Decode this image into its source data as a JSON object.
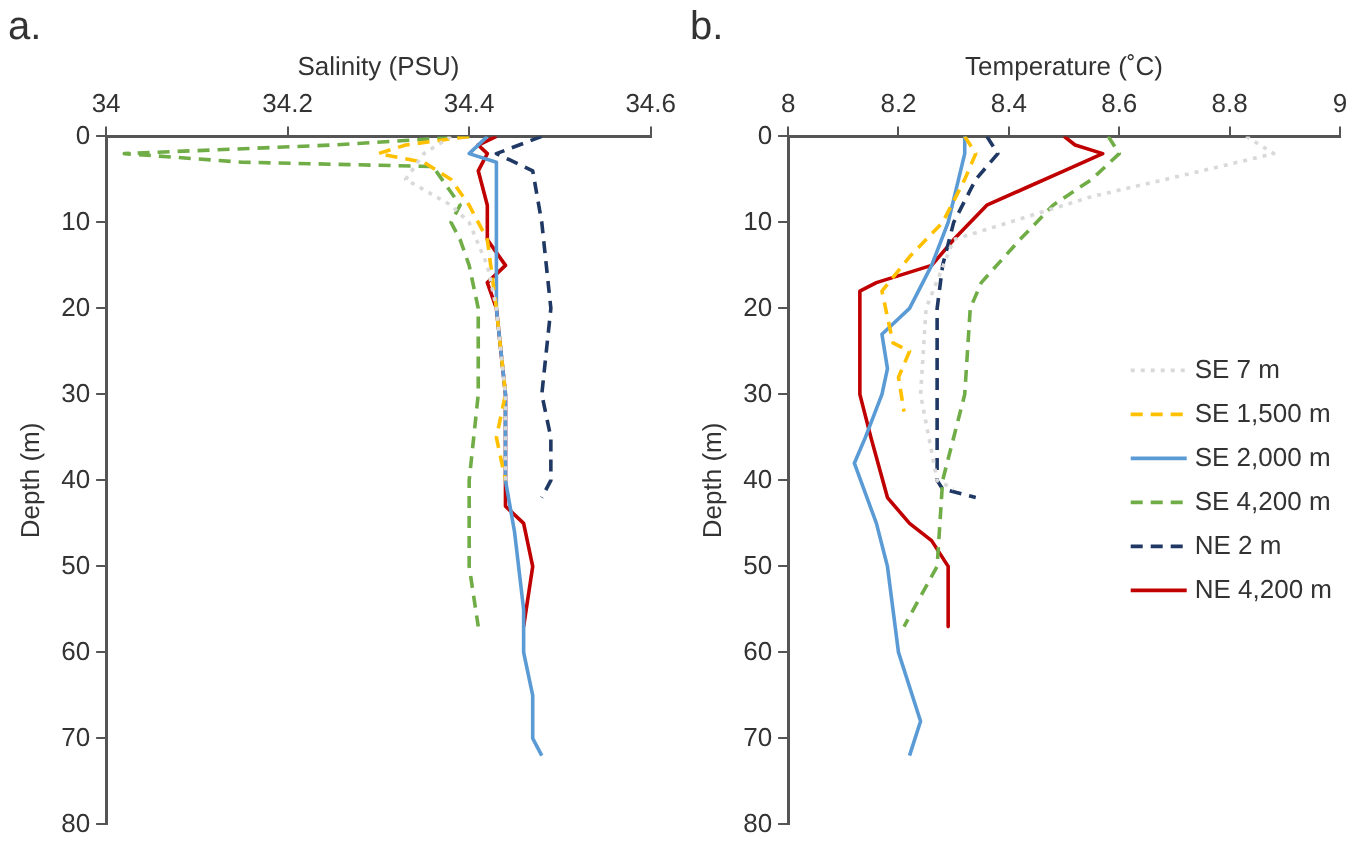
{
  "chart_data": [
    {
      "type": "line",
      "title": "a.",
      "xlabel": "Salinity (PSU)",
      "ylabel": "Depth (m)",
      "xlim": [
        34,
        34.6
      ],
      "xticks": [
        34,
        34.2,
        34.4,
        34.6
      ],
      "ylim": [
        80,
        0
      ],
      "yticks": [
        0,
        10,
        20,
        30,
        40,
        50,
        60,
        70,
        80
      ],
      "grid": false,
      "marker": "none",
      "series": [
        {
          "color": "#d9d9d9",
          "line_style": "dotted",
          "x": [
            34.38,
            34.35,
            34.33,
            34.38,
            34.4,
            34.42,
            34.43,
            34.44,
            34.44
          ],
          "values": [
            0,
            2,
            5,
            8,
            10,
            15,
            20,
            30,
            40
          ]
        },
        {
          "color": "#ffc000",
          "line_style": "dashed",
          "x": [
            34.4,
            34.33,
            34.3,
            34.35,
            34.38,
            34.4,
            34.42,
            34.43,
            34.44,
            34.43,
            34.44
          ],
          "values": [
            0,
            1,
            2,
            3,
            5,
            8,
            12,
            20,
            30,
            35,
            40
          ]
        },
        {
          "color": "#5b9bd5",
          "line_style": "solid",
          "x": [
            34.42,
            34.4,
            34.43,
            34.43,
            34.44,
            34.44,
            34.45,
            34.46,
            34.46,
            34.47,
            34.47,
            34.48
          ],
          "values": [
            0,
            2,
            3,
            20,
            30,
            40,
            46,
            55,
            60,
            65,
            70,
            72
          ]
        },
        {
          "color": "#70ad47",
          "line_style": "dashed",
          "x": [
            34.4,
            34.25,
            34.02,
            34.15,
            34.36,
            34.37,
            34.39,
            34.38,
            34.39,
            34.4,
            34.41,
            34.41,
            34.4,
            34.4,
            34.41
          ],
          "values": [
            0,
            1,
            2,
            3,
            3.5,
            5,
            8,
            10,
            12,
            15,
            20,
            30,
            40,
            50,
            57
          ]
        },
        {
          "color": "#1f3864",
          "line_style": "dashed",
          "x": [
            34.48,
            34.43,
            34.47,
            34.48,
            34.49,
            34.48,
            34.49,
            34.49,
            34.48
          ],
          "values": [
            0,
            2,
            4,
            10,
            20,
            30,
            35,
            40,
            42
          ]
        },
        {
          "color": "#c00000",
          "line_style": "solid",
          "x": [
            34.43,
            34.41,
            34.42,
            34.41,
            34.42,
            34.42,
            34.44,
            34.42,
            34.43,
            34.44,
            34.44,
            34.46,
            34.47,
            34.46
          ],
          "values": [
            0,
            1,
            2,
            4,
            8,
            12,
            15,
            17,
            20,
            30,
            43,
            45,
            50,
            57
          ]
        }
      ]
    },
    {
      "type": "line",
      "title": "b.",
      "xlabel": "Temperature (˚C)",
      "ylabel": "Depth (m)",
      "xlim": [
        8,
        9
      ],
      "xticks": [
        8,
        8.2,
        8.4,
        8.6,
        8.8,
        9
      ],
      "ylim": [
        80,
        0
      ],
      "yticks": [
        0,
        10,
        20,
        30,
        40,
        50,
        60,
        70,
        80
      ],
      "grid": false,
      "legend": "right",
      "marker": "none",
      "series": [
        {
          "name": "SE 7 m",
          "color": "#d9d9d9",
          "line_style": "dotted",
          "x": [
            8.83,
            8.88,
            8.75,
            8.55,
            8.4,
            8.3,
            8.25,
            8.24,
            8.27,
            8.3
          ],
          "values": [
            0,
            2,
            4,
            7,
            10,
            12,
            20,
            30,
            40,
            41
          ]
        },
        {
          "name": "SE 1,500 m",
          "color": "#ffc000",
          "line_style": "dashed",
          "x": [
            8.32,
            8.34,
            8.32,
            8.28,
            8.22,
            8.17,
            8.19,
            8.22,
            8.2,
            8.21
          ],
          "values": [
            0,
            2,
            5,
            10,
            14,
            18,
            24,
            25,
            28,
            32
          ]
        },
        {
          "name": "SE 2,000 m",
          "color": "#5b9bd5",
          "line_style": "solid",
          "x": [
            8.32,
            8.32,
            8.29,
            8.26,
            8.22,
            8.17,
            8.18,
            8.17,
            8.14,
            8.12,
            8.16,
            8.18,
            8.2,
            8.24,
            8.23,
            8.22
          ],
          "values": [
            0,
            2,
            10,
            15,
            20,
            23,
            27,
            30,
            35,
            38,
            45,
            50,
            60,
            68,
            70,
            72
          ]
        },
        {
          "name": "SE 4,200 m",
          "color": "#70ad47",
          "line_style": "dashed",
          "x": [
            8.58,
            8.6,
            8.55,
            8.48,
            8.42,
            8.35,
            8.33,
            8.32,
            8.28,
            8.27,
            8.21
          ],
          "values": [
            0,
            2,
            5,
            8,
            12,
            17,
            20,
            30,
            40,
            50,
            57
          ]
        },
        {
          "name": "NE 2 m",
          "color": "#1f3864",
          "line_style": "dashed",
          "x": [
            8.36,
            8.38,
            8.34,
            8.3,
            8.28,
            8.27,
            8.27,
            8.28,
            8.34
          ],
          "values": [
            0,
            2,
            5,
            10,
            15,
            20,
            40,
            41,
            42
          ]
        },
        {
          "name": "NE 4,200 m",
          "color": "#c00000",
          "line_style": "solid",
          "x": [
            8.5,
            8.52,
            8.57,
            8.5,
            8.43,
            8.36,
            8.3,
            8.26,
            8.16,
            8.13,
            8.13,
            8.15,
            8.18,
            8.22,
            8.26,
            8.29,
            8.29
          ],
          "values": [
            0,
            1,
            2,
            4,
            6,
            8,
            12,
            15,
            17,
            18,
            30,
            35,
            42,
            45,
            47,
            50,
            57
          ]
        }
      ]
    }
  ]
}
